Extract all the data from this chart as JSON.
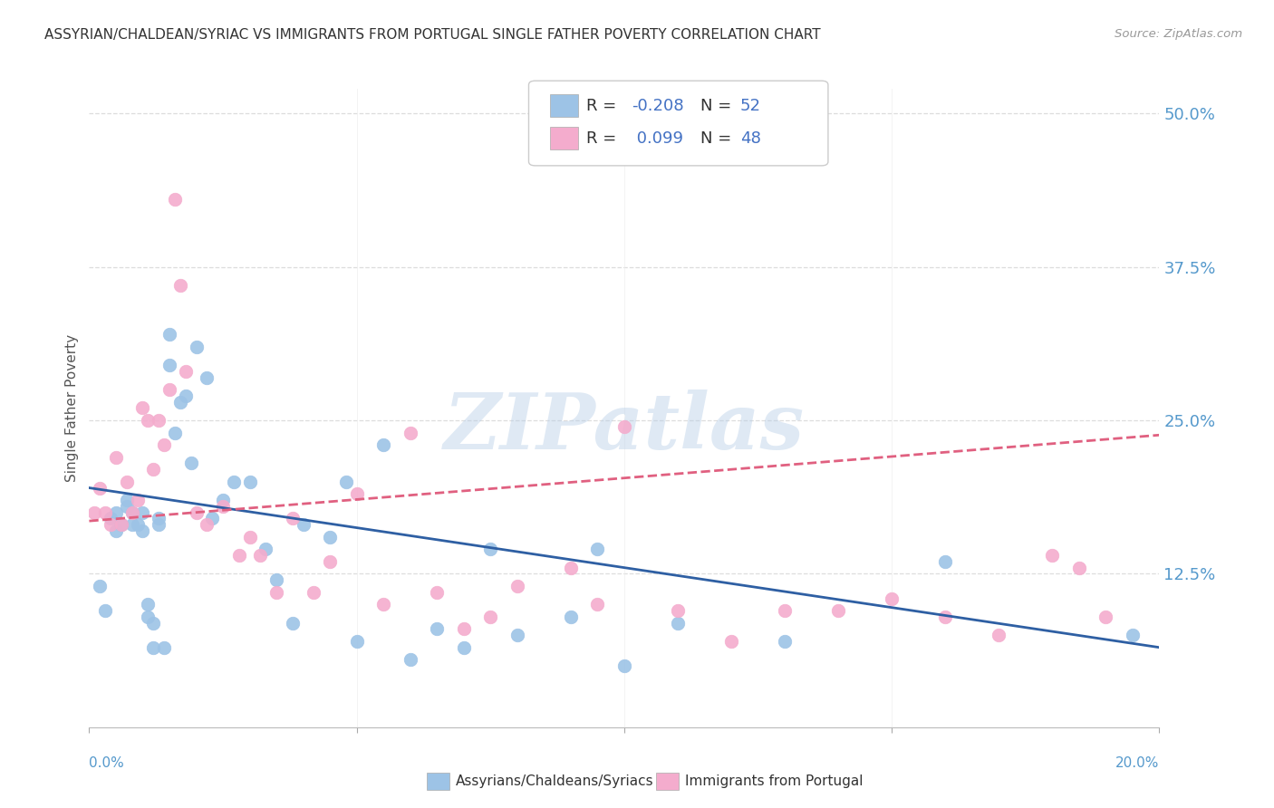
{
  "title": "ASSYRIAN/CHALDEAN/SYRIAC VS IMMIGRANTS FROM PORTUGAL SINGLE FATHER POVERTY CORRELATION CHART",
  "source": "Source: ZipAtlas.com",
  "ylabel": "Single Father Poverty",
  "ytick_labels": [
    "12.5%",
    "25.0%",
    "37.5%",
    "50.0%"
  ],
  "ytick_values": [
    0.125,
    0.25,
    0.375,
    0.5
  ],
  "xlim": [
    0.0,
    0.2
  ],
  "ylim": [
    0.0,
    0.52
  ],
  "xtick_left_label": "0.0%",
  "xtick_right_label": "20.0%",
  "legend_text_color": "#4472c4",
  "color_blue": "#9dc3e6",
  "color_pink": "#f4accd",
  "color_blue_line": "#2e5fa3",
  "color_pink_line": "#e06080",
  "scatter_blue_x": [
    0.002,
    0.003,
    0.004,
    0.005,
    0.005,
    0.006,
    0.007,
    0.007,
    0.008,
    0.008,
    0.009,
    0.01,
    0.01,
    0.011,
    0.011,
    0.012,
    0.012,
    0.013,
    0.013,
    0.014,
    0.015,
    0.015,
    0.016,
    0.017,
    0.018,
    0.019,
    0.02,
    0.022,
    0.023,
    0.025,
    0.027,
    0.03,
    0.033,
    0.035,
    0.038,
    0.04,
    0.045,
    0.048,
    0.05,
    0.055,
    0.06,
    0.065,
    0.07,
    0.075,
    0.08,
    0.09,
    0.095,
    0.1,
    0.11,
    0.13,
    0.16,
    0.195
  ],
  "scatter_blue_y": [
    0.115,
    0.095,
    0.17,
    0.16,
    0.175,
    0.165,
    0.185,
    0.18,
    0.175,
    0.165,
    0.165,
    0.16,
    0.175,
    0.09,
    0.1,
    0.065,
    0.085,
    0.165,
    0.17,
    0.065,
    0.32,
    0.295,
    0.24,
    0.265,
    0.27,
    0.215,
    0.31,
    0.285,
    0.17,
    0.185,
    0.2,
    0.2,
    0.145,
    0.12,
    0.085,
    0.165,
    0.155,
    0.2,
    0.07,
    0.23,
    0.055,
    0.08,
    0.065,
    0.145,
    0.075,
    0.09,
    0.145,
    0.05,
    0.085,
    0.07,
    0.135,
    0.075
  ],
  "scatter_pink_x": [
    0.001,
    0.002,
    0.003,
    0.004,
    0.005,
    0.006,
    0.007,
    0.008,
    0.009,
    0.01,
    0.011,
    0.012,
    0.013,
    0.014,
    0.015,
    0.016,
    0.017,
    0.018,
    0.02,
    0.022,
    0.025,
    0.028,
    0.03,
    0.032,
    0.035,
    0.038,
    0.042,
    0.045,
    0.05,
    0.055,
    0.06,
    0.065,
    0.07,
    0.075,
    0.08,
    0.09,
    0.095,
    0.1,
    0.11,
    0.12,
    0.13,
    0.14,
    0.15,
    0.16,
    0.17,
    0.18,
    0.185,
    0.19
  ],
  "scatter_pink_y": [
    0.175,
    0.195,
    0.175,
    0.165,
    0.22,
    0.165,
    0.2,
    0.175,
    0.185,
    0.26,
    0.25,
    0.21,
    0.25,
    0.23,
    0.275,
    0.43,
    0.36,
    0.29,
    0.175,
    0.165,
    0.18,
    0.14,
    0.155,
    0.14,
    0.11,
    0.17,
    0.11,
    0.135,
    0.19,
    0.1,
    0.24,
    0.11,
    0.08,
    0.09,
    0.115,
    0.13,
    0.1,
    0.245,
    0.095,
    0.07,
    0.095,
    0.095,
    0.105,
    0.09,
    0.075,
    0.14,
    0.13,
    0.09
  ],
  "blue_line_x": [
    0.0,
    0.2
  ],
  "blue_line_y": [
    0.195,
    0.065
  ],
  "pink_line_x": [
    0.0,
    0.2
  ],
  "pink_line_y": [
    0.168,
    0.238
  ],
  "watermark": "ZIPatlas",
  "background_color": "#ffffff",
  "grid_color": "#dddddd"
}
